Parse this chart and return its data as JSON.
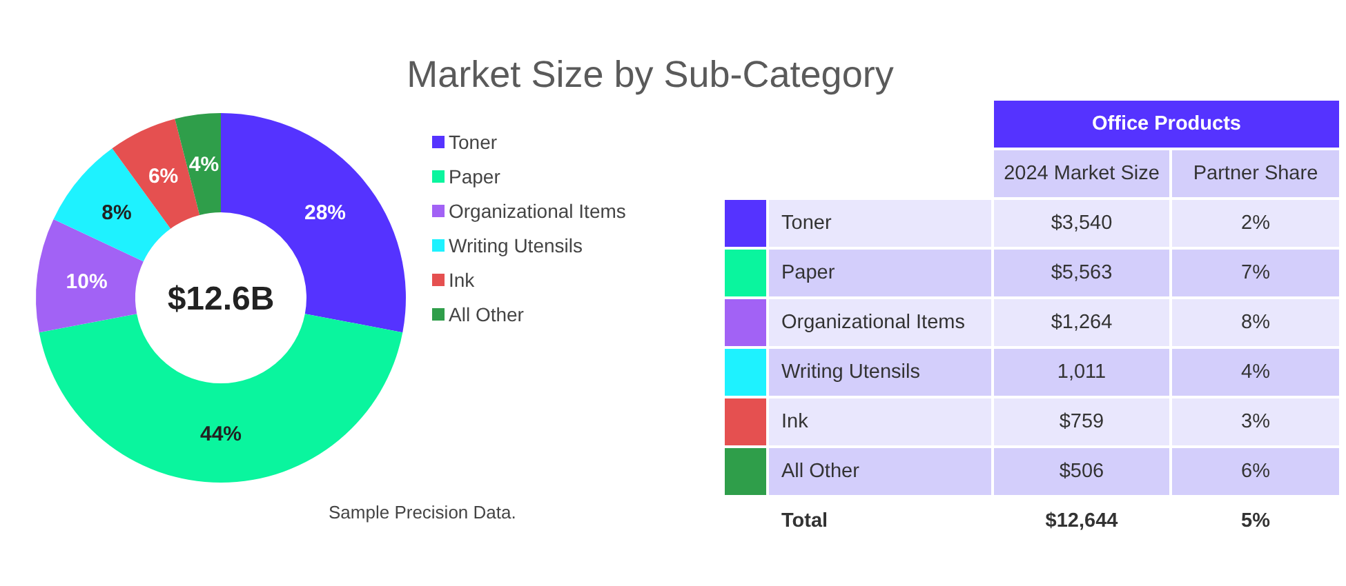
{
  "chart_data": [
    {
      "type": "donut",
      "title": "Market Size by Sub-Category",
      "categories": [
        "Toner",
        "Paper",
        "Organizational Items",
        "Writing Utensils",
        "Ink",
        "All Other"
      ],
      "values": [
        28,
        44,
        10,
        8,
        6,
        4
      ],
      "value_labels": [
        "28%",
        "44%",
        "10%",
        "8%",
        "6%",
        "4%"
      ],
      "colors": [
        "#5533ff",
        "#0af59e",
        "#a262f5",
        "#1ef2ff",
        "#e55050",
        "#2f9e4a"
      ],
      "legend": "right",
      "annotations": [
        "$12.6B",
        "Sample Precision Data."
      ]
    },
    {
      "type": "other",
      "title": "Office Products",
      "categories": [
        "Toner",
        "Paper",
        "Organizational Items",
        "Writing Utensils",
        "Ink",
        "All Other",
        "Total"
      ],
      "colors": [
        "#5533ff",
        "#0af59e",
        "#a262f5",
        "#1ef2ff",
        "#e55050",
        "#2f9e4a",
        null
      ],
      "series": [
        {
          "name": "2024 Market Size",
          "colors": [
            "#e9e7fd",
            "#d3cefb",
            "#e9e7fd",
            "#d3cefb",
            "#e9e7fd",
            "#d3cefb",
            "#ffffff"
          ],
          "values": [
            3540,
            5563,
            1264,
            1011,
            759,
            506,
            12644
          ],
          "value_labels": [
            "$3,540",
            "$5,563",
            "$1,264",
            "1,011",
            "$759",
            "$506",
            "$12,644"
          ]
        },
        {
          "name": "Partner Share",
          "colors": [
            "#e9e7fd",
            "#d3cefb",
            "#e9e7fd",
            "#d3cefb",
            "#e9e7fd",
            "#d3cefb",
            "#ffffff"
          ],
          "values": [
            2,
            7,
            8,
            4,
            3,
            6,
            5
          ],
          "value_labels": [
            "2%",
            "7%",
            "8%",
            "4%",
            "3%",
            "6%",
            "5%"
          ]
        }
      ]
    }
  ]
}
